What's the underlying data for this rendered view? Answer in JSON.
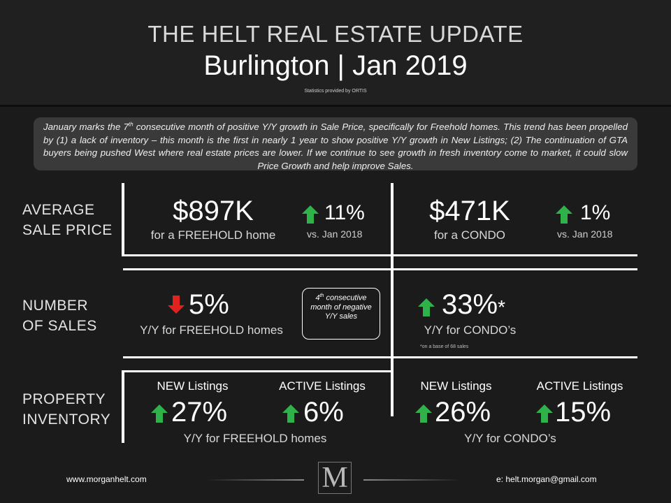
{
  "header": {
    "title": "THE HELT REAL ESTATE UPDATE",
    "subtitle": "Burlington | Jan 2019",
    "credit": "Statistics provided by ORTIS"
  },
  "summary": {
    "part1": "January marks the 7",
    "sup": "th",
    "part2": " consecutive month of positive Y/Y growth in Sale Price, specifically for Freehold homes. This trend has been propelled by (1) a lack of inventory – this month is the first in nearly 1 year to show positive Y/Y growth in New Listings; (2) The continuation of GTA buyers being pushed West where real estate prices are lower. If we continue to see growth in fresh inventory come to market, it could slow Price Growth and help improve Sales."
  },
  "rows": {
    "avg_price": {
      "line1": "AVERAGE",
      "line2": "SALE PRICE"
    },
    "num_sales": {
      "line1": "NUMBER",
      "line2": "OF SALES"
    },
    "inventory": {
      "line1": "PROPERTY",
      "line2": "INVENTORY"
    }
  },
  "avg_price": {
    "freehold": {
      "value": "$897K",
      "label": "for a FREEHOLD home",
      "change": "11%",
      "direction": "up",
      "compare": "vs. Jan 2018"
    },
    "condo": {
      "value": "$471K",
      "label": "for a CONDO",
      "change": "1%",
      "direction": "up",
      "compare": "vs. Jan 2018"
    }
  },
  "sales": {
    "freehold": {
      "change": "5%",
      "direction": "down",
      "label": "Y/Y for FREEHOLD homes"
    },
    "callout": {
      "part1": "4",
      "sup": "th",
      "part2": " consecutive month of negative Y/Y sales"
    },
    "condo": {
      "change": "33%",
      "asterisk": "*",
      "direction": "up",
      "label": "Y/Y for CONDO’s",
      "note": "*on a base of 68 sales"
    }
  },
  "inventory": {
    "freehold": {
      "new_label": "NEW Listings",
      "new_value": "27%",
      "active_label": "ACTIVE Listings",
      "active_value": "6%",
      "caption": "Y/Y for FREEHOLD homes"
    },
    "condo": {
      "new_label": "NEW Listings",
      "new_value": "26%",
      "active_label": "ACTIVE Listings",
      "active_value": "15%",
      "caption": "Y/Y for CONDO’s"
    }
  },
  "footer": {
    "website": "www.morganhelt.com",
    "email": "e: helt.morgan@gmail.com",
    "logo_letter": "M"
  },
  "colors": {
    "up_arrow": "#2fb24a",
    "down_arrow": "#e0231f",
    "background": "#1b1b1b",
    "summary_box": "#3a3a3a"
  }
}
